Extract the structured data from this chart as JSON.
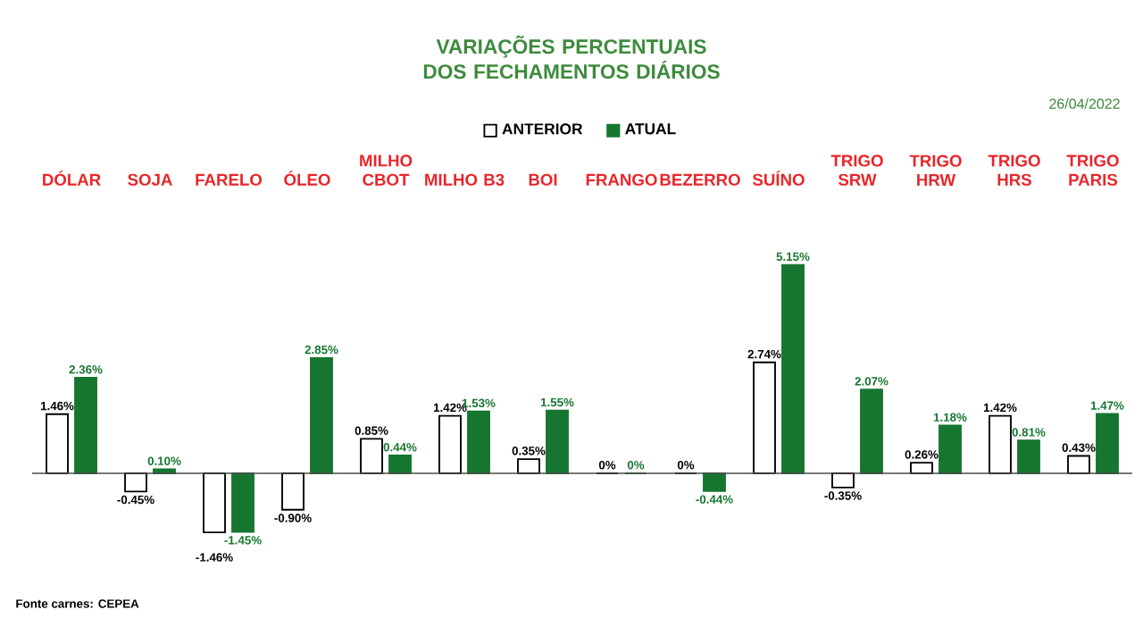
{
  "chart_data": {
    "type": "bar",
    "title": "VARIAÇÕES PERCENTUAIS DOS FECHAMENTOS DIÁRIOS",
    "categories": [
      "DÓLAR",
      "SOJA",
      "FARELO",
      "ÓLEO",
      "MILHO CBOT",
      "MILHO B3",
      "BOI",
      "FRANGO",
      "BEZERRO",
      "SUÍNO",
      "TRIGO SRW",
      "TRIGO HRW",
      "TRIGO HRS",
      "TRIGO PARIS"
    ],
    "series": [
      {
        "name": "ANTERIOR",
        "color": "#ffffff",
        "values": [
          1.46,
          -0.45,
          -1.46,
          -0.9,
          0.85,
          1.42,
          0.35,
          0,
          0,
          2.74,
          -0.35,
          0.26,
          1.42,
          0.43
        ],
        "value_labels": [
          "1.46%",
          "-0.45%",
          "-1.46%",
          "-0.90%",
          "0.85%",
          "1.42%",
          "0.35%",
          "0%",
          "0%",
          "2.74%",
          "-0.35%",
          "0.26%",
          "1.42%",
          "0.43%"
        ]
      },
      {
        "name": "ATUAL",
        "color": "#16762f",
        "values": [
          2.36,
          0.1,
          -1.45,
          2.85,
          0.44,
          1.53,
          1.55,
          0,
          -0.44,
          5.15,
          2.07,
          1.18,
          0.81,
          1.47
        ],
        "value_labels": [
          "2.36%",
          "0.10%",
          "-1.45%",
          "2.85%",
          "0.44%",
          "1.53%",
          "1.55%",
          "0%",
          "-0.44%",
          "5.15%",
          "2.07%",
          "1.18%",
          "0.81%",
          "1.47%"
        ]
      }
    ],
    "legend": "top",
    "annotations": [
      "26/04/2022",
      "Fonte carnes: CEPEA"
    ]
  }
}
